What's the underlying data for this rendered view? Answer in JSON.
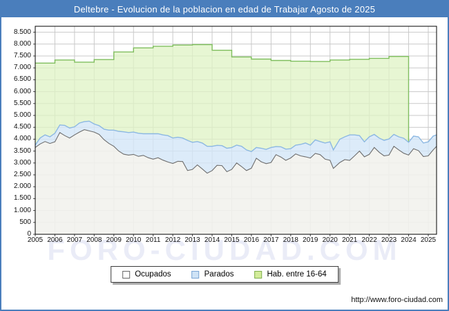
{
  "window": {
    "title": "Deltebre - Evolucion de la poblacion en edad de Trabajar Agosto de 2025"
  },
  "footer": {
    "url": "http://www.foro-ciudad.com"
  },
  "watermark": "FORO-CIUDAD.COM",
  "colors": {
    "accent": "#4a7ebc",
    "frame": "#000000",
    "grid": "#c9c9c9",
    "green_line": "#7fbe5e",
    "green_fill": "#dff3c4",
    "blue_line": "#8cb8e2",
    "blue_fill": "#d3e6f7",
    "gray_line": "#6e6e6e",
    "gray_fill": "#f1f1ed"
  },
  "chart_data": {
    "type": "area",
    "title": "Deltebre - Evolucion de la poblacion en edad de Trabajar Agosto de 2025",
    "xlabel": "",
    "ylabel": "",
    "grid": true,
    "legend_position": "bottom-center",
    "ylim": [
      0,
      8750
    ],
    "xlim": [
      2005,
      2025.42
    ],
    "x_ticks": [
      "2005",
      "2006",
      "2007",
      "2008",
      "2009",
      "2010",
      "2011",
      "2012",
      "2013",
      "2014",
      "2015",
      "2016",
      "2017",
      "2018",
      "2019",
      "2020",
      "2021",
      "2022",
      "2023",
      "2024",
      "2025"
    ],
    "y_tick_values": [
      0,
      500,
      1000,
      1500,
      2000,
      2500,
      3000,
      3500,
      4000,
      4500,
      5000,
      5500,
      6000,
      6500,
      7000,
      7500,
      8000,
      8500
    ],
    "y_tick_labels": [
      "0",
      "500",
      "1.000",
      "1.500",
      "2.000",
      "2.500",
      "3.000",
      "3.500",
      "4.000",
      "4.500",
      "5.000",
      "5.500",
      "6.000",
      "6.500",
      "7.000",
      "7.500",
      "8.000",
      "8.500"
    ],
    "legend": [
      {
        "label": "Ocupados",
        "swatch_fill": "#ffffff",
        "swatch_border": "#666666"
      },
      {
        "label": "Parados",
        "swatch_fill": "#cfe3f6",
        "swatch_border": "#7aa5d4"
      },
      {
        "label": "Hab. entre 16-64",
        "swatch_fill": "#d3ec9a",
        "swatch_border": "#7fae4f"
      }
    ],
    "x": [
      2005.0,
      2005.25,
      2005.5,
      2005.75,
      2006.0,
      2006.25,
      2006.5,
      2006.75,
      2007.0,
      2007.25,
      2007.5,
      2007.75,
      2008.0,
      2008.25,
      2008.5,
      2008.75,
      2009.0,
      2009.25,
      2009.5,
      2009.75,
      2010.0,
      2010.25,
      2010.5,
      2010.75,
      2011.0,
      2011.25,
      2011.5,
      2011.75,
      2012.0,
      2012.25,
      2012.5,
      2012.75,
      2013.0,
      2013.25,
      2013.5,
      2013.75,
      2014.0,
      2014.25,
      2014.5,
      2014.75,
      2015.0,
      2015.25,
      2015.5,
      2015.75,
      2016.0,
      2016.25,
      2016.5,
      2016.75,
      2017.0,
      2017.25,
      2017.5,
      2017.75,
      2018.0,
      2018.25,
      2018.5,
      2018.75,
      2019.0,
      2019.25,
      2019.5,
      2019.75,
      2020.0,
      2020.17,
      2020.5,
      2020.75,
      2021.0,
      2021.25,
      2021.5,
      2021.75,
      2022.0,
      2022.25,
      2022.5,
      2022.75,
      2023.0,
      2023.25,
      2023.5,
      2023.75,
      2024.0,
      2024.25,
      2024.5,
      2024.75,
      2025.0,
      2025.25,
      2025.65
    ],
    "series": [
      {
        "name": "Hab. entre 16-64",
        "type": "step-area",
        "note": "annual padron values, series ends at 2024.0",
        "years": [
          2005,
          2006,
          2007,
          2008,
          2009,
          2010,
          2011,
          2012,
          2013,
          2014,
          2015,
          2016,
          2017,
          2018,
          2019,
          2020,
          2021,
          2022,
          2023
        ],
        "values": [
          7200,
          7330,
          7240,
          7350,
          7670,
          7840,
          7910,
          7960,
          7980,
          7740,
          7460,
          7370,
          7310,
          7280,
          7270,
          7330,
          7360,
          7400,
          7480
        ],
        "extends_to": 2024,
        "line": "#7fbe5e",
        "fill": "#dff3c4"
      },
      {
        "name": "Parados",
        "type": "area-band",
        "note": "band stacked on Ocupados; top boundary = Ocupados + Parados",
        "top_values": [
          3750,
          4050,
          4180,
          4100,
          4250,
          4600,
          4580,
          4470,
          4520,
          4680,
          4740,
          4760,
          4640,
          4570,
          4420,
          4380,
          4380,
          4330,
          4310,
          4280,
          4300,
          4250,
          4230,
          4230,
          4230,
          4230,
          4180,
          4150,
          4050,
          4080,
          4050,
          3950,
          3870,
          3900,
          3840,
          3700,
          3700,
          3740,
          3730,
          3620,
          3650,
          3750,
          3700,
          3550,
          3480,
          3650,
          3620,
          3570,
          3650,
          3690,
          3680,
          3580,
          3600,
          3750,
          3780,
          3840,
          3750,
          3970,
          3900,
          3840,
          3890,
          3550,
          4000,
          4100,
          4180,
          4180,
          4150,
          3890,
          4100,
          4200,
          4050,
          3950,
          4010,
          4200,
          4100,
          4040,
          3870,
          4130,
          4100,
          3840,
          3890,
          4130,
          4180
        ],
        "line": "#8cb8e2",
        "fill": "#d3e6f7"
      },
      {
        "name": "Ocupados",
        "type": "area",
        "values": [
          3650,
          3800,
          3900,
          3820,
          3890,
          4280,
          4150,
          4050,
          4180,
          4300,
          4400,
          4350,
          4300,
          4200,
          3980,
          3820,
          3700,
          3500,
          3370,
          3330,
          3360,
          3280,
          3320,
          3220,
          3160,
          3220,
          3120,
          3040,
          2980,
          3070,
          3060,
          2680,
          2730,
          2920,
          2750,
          2570,
          2680,
          2900,
          2890,
          2630,
          2730,
          3000,
          2850,
          2680,
          2780,
          3200,
          3050,
          2970,
          3020,
          3350,
          3250,
          3110,
          3210,
          3380,
          3300,
          3260,
          3210,
          3400,
          3350,
          3160,
          3110,
          2770,
          3020,
          3140,
          3110,
          3300,
          3500,
          3260,
          3360,
          3650,
          3450,
          3300,
          3330,
          3700,
          3550,
          3410,
          3330,
          3600,
          3520,
          3270,
          3300,
          3550,
          3700
        ],
        "line": "#6e6e6e",
        "fill": "#f1f1ed"
      }
    ]
  }
}
